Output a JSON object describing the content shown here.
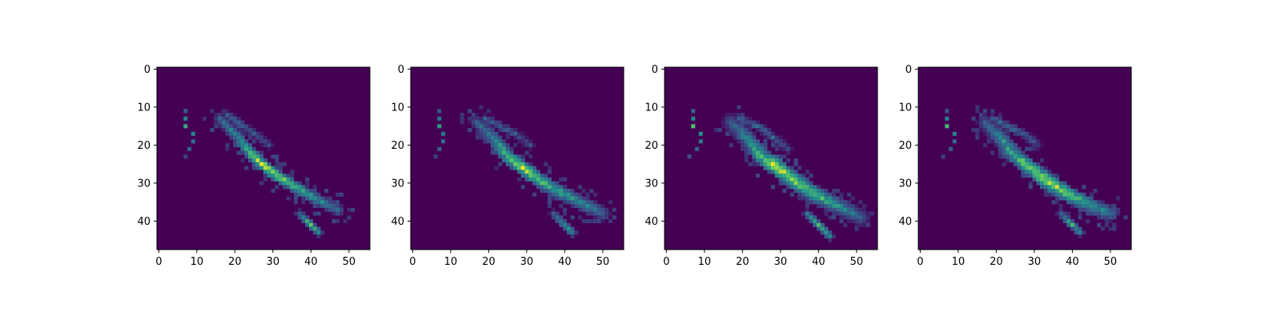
{
  "colors": {
    "background_low": "#440154",
    "mid_low": "#3b528b",
    "mid": "#21918c",
    "mid_high": "#5ec962",
    "high": "#fde725",
    "axis": "#000000",
    "figure_bg": "#ffffff"
  },
  "chart_data": [
    {
      "type": "heatmap",
      "colormap": "viridis",
      "xlim": [
        -0.5,
        55.5
      ],
      "ylim": [
        47.5,
        -0.5
      ],
      "xticks": [
        0,
        10,
        20,
        30,
        40,
        50
      ],
      "yticks": [
        0,
        10,
        20,
        30,
        40
      ],
      "xtick_labels": [
        "0",
        "10",
        "20",
        "30",
        "40",
        "50"
      ],
      "ytick_labels": [
        "0",
        "10",
        "20",
        "30",
        "40"
      ],
      "features": {
        "main_band": [
          [
            16,
            13,
            0.35
          ],
          [
            20,
            17,
            0.5
          ],
          [
            24,
            22,
            0.75
          ],
          [
            27,
            25,
            1.0
          ],
          [
            31,
            28,
            0.85
          ],
          [
            36,
            31,
            0.7
          ],
          [
            41,
            34,
            0.55
          ],
          [
            47,
            37,
            0.4
          ]
        ],
        "band_halfwidth": 1.6,
        "upper_arm": [
          [
            18,
            12,
            0.3
          ],
          [
            22,
            15,
            0.35
          ],
          [
            25,
            17,
            0.3
          ],
          [
            29,
            20,
            0.25
          ]
        ],
        "left_dots": [
          [
            7,
            11,
            0.3
          ],
          [
            7,
            13,
            0.45
          ],
          [
            7,
            15,
            0.6
          ],
          [
            9,
            17,
            0.45
          ],
          [
            9,
            19,
            0.35
          ],
          [
            8,
            21,
            0.3
          ],
          [
            7,
            23,
            0.2
          ]
        ],
        "lower_blob": [
          [
            37,
            38,
            0.4
          ],
          [
            40,
            41,
            0.7
          ],
          [
            42,
            43,
            0.55
          ]
        ]
      }
    },
    {
      "type": "heatmap",
      "colormap": "viridis",
      "xlim": [
        -0.5,
        55.5
      ],
      "ylim": [
        47.5,
        -0.5
      ],
      "xticks": [
        0,
        10,
        20,
        30,
        40,
        50
      ],
      "yticks": [
        0,
        10,
        20,
        30,
        40
      ],
      "xtick_labels": [
        "0",
        "10",
        "20",
        "30",
        "40",
        "50"
      ],
      "ytick_labels": [
        "0",
        "10",
        "20",
        "30",
        "40"
      ],
      "features": {
        "main_band": [
          [
            17,
            14,
            0.3
          ],
          [
            21,
            18,
            0.5
          ],
          [
            25,
            23,
            0.75
          ],
          [
            29,
            26,
            0.95
          ],
          [
            33,
            29,
            0.8
          ],
          [
            38,
            32,
            0.65
          ],
          [
            44,
            35,
            0.5
          ],
          [
            50,
            38,
            0.35
          ]
        ],
        "band_halfwidth": 2.0,
        "upper_arm": [
          [
            19,
            13,
            0.3
          ],
          [
            23,
            15,
            0.35
          ],
          [
            27,
            17,
            0.3
          ],
          [
            31,
            20,
            0.25
          ]
        ],
        "left_dots": [
          [
            7,
            11,
            0.25
          ],
          [
            7,
            13,
            0.4
          ],
          [
            7,
            15,
            0.55
          ],
          [
            8,
            17,
            0.4
          ],
          [
            8,
            19,
            0.35
          ],
          [
            7,
            21,
            0.3
          ],
          [
            6,
            23,
            0.2
          ]
        ],
        "lower_blob": [
          [
            37,
            38,
            0.35
          ],
          [
            40,
            41,
            0.6
          ],
          [
            42,
            43,
            0.5
          ]
        ]
      }
    },
    {
      "type": "heatmap",
      "colormap": "viridis",
      "xlim": [
        -0.5,
        55.5
      ],
      "ylim": [
        47.5,
        -0.5
      ],
      "xticks": [
        0,
        10,
        20,
        30,
        40,
        50
      ],
      "yticks": [
        0,
        10,
        20,
        30,
        40
      ],
      "xtick_labels": [
        "0",
        "10",
        "20",
        "30",
        "40",
        "50"
      ],
      "ytick_labels": [
        "0",
        "10",
        "20",
        "30",
        "40"
      ],
      "features": {
        "main_band": [
          [
            17,
            14,
            0.3
          ],
          [
            21,
            18,
            0.5
          ],
          [
            25,
            23,
            0.75
          ],
          [
            28,
            25,
            1.0
          ],
          [
            33,
            29,
            0.9
          ],
          [
            39,
            33,
            0.75
          ],
          [
            45,
            36,
            0.55
          ],
          [
            51,
            39,
            0.35
          ]
        ],
        "band_halfwidth": 2.3,
        "upper_arm": [
          [
            19,
            13,
            0.35
          ],
          [
            24,
            15,
            0.4
          ],
          [
            28,
            18,
            0.35
          ],
          [
            32,
            21,
            0.25
          ]
        ],
        "left_dots": [
          [
            7,
            11,
            0.3
          ],
          [
            7,
            13,
            0.45
          ],
          [
            7,
            15,
            0.7
          ],
          [
            9,
            17,
            0.5
          ],
          [
            9,
            19,
            0.4
          ],
          [
            8,
            21,
            0.3
          ],
          [
            6,
            23,
            0.25
          ]
        ],
        "lower_blob": [
          [
            37,
            38,
            0.4
          ],
          [
            40,
            41,
            0.65
          ],
          [
            43,
            44,
            0.5
          ]
        ]
      }
    },
    {
      "type": "heatmap",
      "colormap": "viridis",
      "xlim": [
        -0.5,
        55.5
      ],
      "ylim": [
        47.5,
        -0.5
      ],
      "xticks": [
        0,
        10,
        20,
        30,
        40,
        50
      ],
      "yticks": [
        0,
        10,
        20,
        30,
        40
      ],
      "xtick_labels": [
        "0",
        "10",
        "20",
        "30",
        "40",
        "50"
      ],
      "ytick_labels": [
        "0",
        "10",
        "20",
        "30",
        "40"
      ],
      "features": {
        "main_band": [
          [
            17,
            14,
            0.3
          ],
          [
            21,
            18,
            0.5
          ],
          [
            25,
            23,
            0.7
          ],
          [
            29,
            26,
            0.85
          ],
          [
            34,
            30,
            0.95
          ],
          [
            39,
            33,
            0.8
          ],
          [
            45,
            36,
            0.6
          ],
          [
            50,
            38,
            0.4
          ]
        ],
        "band_halfwidth": 2.2,
        "upper_arm": [
          [
            19,
            13,
            0.35
          ],
          [
            23,
            15,
            0.4
          ],
          [
            27,
            17,
            0.35
          ],
          [
            31,
            20,
            0.25
          ]
        ],
        "left_dots": [
          [
            7,
            11,
            0.25
          ],
          [
            7,
            13,
            0.45
          ],
          [
            7,
            15,
            0.65
          ],
          [
            9,
            17,
            0.45
          ],
          [
            9,
            19,
            0.35
          ],
          [
            8,
            21,
            0.3
          ],
          [
            6,
            23,
            0.2
          ]
        ],
        "lower_blob": [
          [
            37,
            38,
            0.4
          ],
          [
            40,
            41,
            0.65
          ],
          [
            42,
            43,
            0.5
          ]
        ]
      }
    }
  ]
}
